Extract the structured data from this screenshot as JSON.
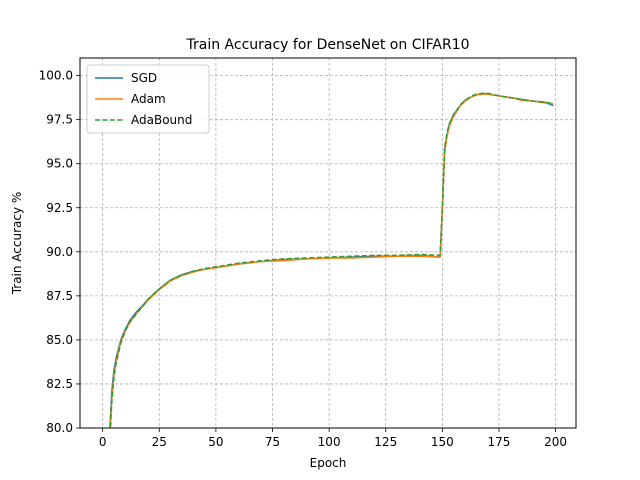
{
  "chart_data": {
    "type": "line",
    "title": "Train Accuracy for DenseNet on CIFAR10",
    "xlabel": "Epoch",
    "ylabel": "Train Accuracy %",
    "xlim": [
      -10,
      209
    ],
    "ylim": [
      80,
      101
    ],
    "xticks": [
      0,
      25,
      50,
      75,
      100,
      125,
      150,
      175,
      200
    ],
    "yticks": [
      80.0,
      82.5,
      85.0,
      87.5,
      90.0,
      92.5,
      95.0,
      97.5,
      100.0
    ],
    "xtick_labels": [
      "0",
      "25",
      "50",
      "75",
      "100",
      "125",
      "150",
      "175",
      "200"
    ],
    "ytick_labels": [
      "80.0",
      "82.5",
      "85.0",
      "87.5",
      "90.0",
      "92.5",
      "95.0",
      "97.5",
      "100.0"
    ],
    "grid": true,
    "legend_position": "top-left",
    "series": [
      {
        "name": "SGD",
        "color": "#1f77b4",
        "style": "solid",
        "x": [
          3,
          4,
          5,
          6,
          8,
          10,
          12,
          15,
          18,
          20,
          25,
          30,
          35,
          40,
          45,
          50,
          55,
          60,
          70,
          80,
          90,
          100,
          110,
          120,
          130,
          140,
          149,
          150,
          151,
          152,
          153,
          155,
          158,
          160,
          163,
          165,
          168,
          170,
          175,
          180,
          185,
          190,
          195,
          199
        ],
        "y": [
          79.5,
          82.0,
          83.3,
          84.0,
          85.0,
          85.6,
          86.1,
          86.6,
          87.0,
          87.3,
          87.9,
          88.4,
          88.7,
          88.9,
          89.0,
          89.1,
          89.2,
          89.3,
          89.45,
          89.55,
          89.6,
          89.65,
          89.7,
          89.75,
          89.75,
          89.8,
          89.7,
          92.5,
          95.8,
          96.6,
          97.2,
          97.8,
          98.3,
          98.6,
          98.8,
          98.9,
          99.0,
          98.95,
          98.85,
          98.75,
          98.65,
          98.55,
          98.5,
          98.3
        ]
      },
      {
        "name": "Adam",
        "color": "#ff7f0e",
        "style": "solid",
        "x": [
          3,
          4,
          5,
          6,
          8,
          10,
          12,
          15,
          18,
          20,
          25,
          30,
          35,
          40,
          45,
          50,
          55,
          60,
          70,
          80,
          90,
          100,
          110,
          120,
          130,
          140,
          149,
          150,
          151,
          152,
          153,
          155,
          158,
          160,
          163,
          165,
          168,
          170,
          175,
          180,
          185,
          190,
          195,
          199
        ],
        "y": [
          79.0,
          81.6,
          83.0,
          83.8,
          84.9,
          85.5,
          86.0,
          86.5,
          86.95,
          87.25,
          87.85,
          88.35,
          88.65,
          88.85,
          89.0,
          89.1,
          89.2,
          89.3,
          89.45,
          89.5,
          89.6,
          89.65,
          89.65,
          89.7,
          89.75,
          89.75,
          89.7,
          92.3,
          95.6,
          96.5,
          97.1,
          97.7,
          98.3,
          98.55,
          98.8,
          98.9,
          98.95,
          98.95,
          98.85,
          98.75,
          98.6,
          98.55,
          98.45,
          98.4
        ]
      },
      {
        "name": "AdaBound",
        "color": "#2ca02c",
        "style": "dashed",
        "x": [
          3,
          4,
          5,
          6,
          8,
          10,
          12,
          15,
          18,
          20,
          25,
          30,
          35,
          40,
          45,
          50,
          55,
          60,
          70,
          80,
          90,
          100,
          110,
          120,
          130,
          140,
          149,
          150,
          151,
          152,
          153,
          155,
          158,
          160,
          163,
          165,
          168,
          170,
          175,
          180,
          185,
          190,
          195,
          199
        ],
        "y": [
          78.8,
          81.4,
          82.9,
          83.7,
          84.8,
          85.5,
          86.0,
          86.5,
          86.95,
          87.3,
          87.9,
          88.4,
          88.7,
          88.9,
          89.05,
          89.15,
          89.25,
          89.35,
          89.5,
          89.6,
          89.65,
          89.7,
          89.75,
          89.8,
          89.8,
          89.85,
          89.8,
          92.6,
          95.9,
          96.7,
          97.25,
          97.8,
          98.35,
          98.6,
          98.85,
          98.95,
          99.0,
          99.0,
          98.85,
          98.75,
          98.65,
          98.55,
          98.5,
          98.4
        ]
      }
    ]
  }
}
